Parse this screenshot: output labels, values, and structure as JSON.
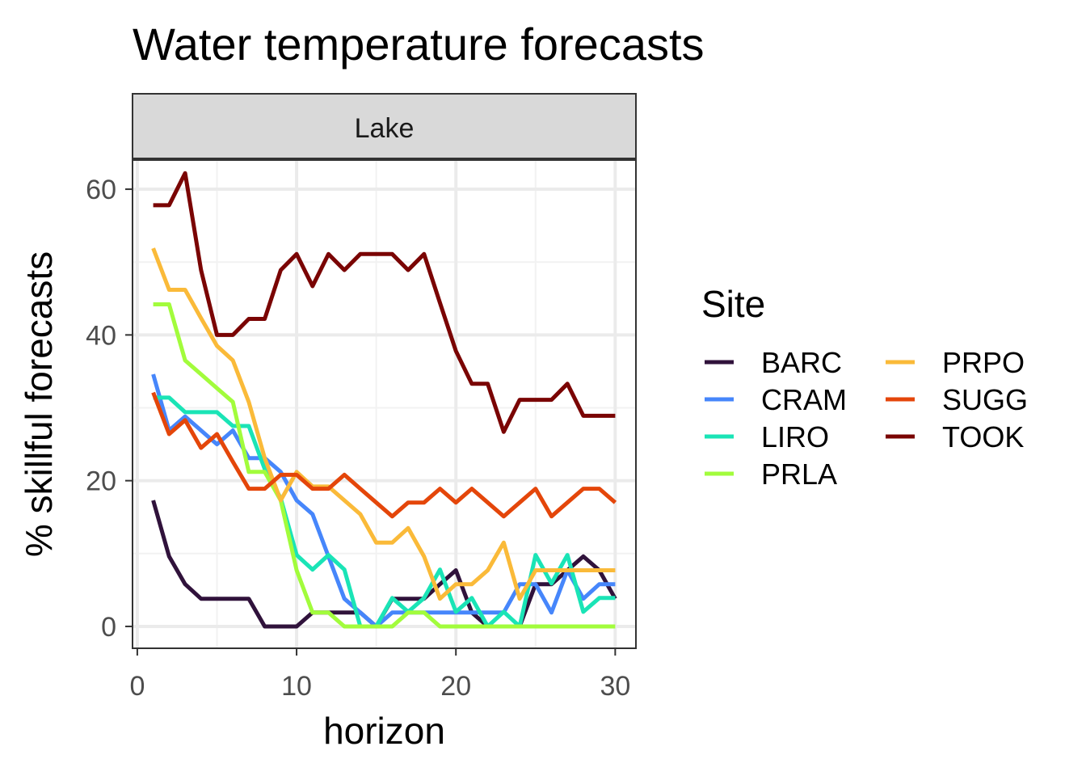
{
  "chart_data": {
    "type": "line",
    "title": "Water temperature forecasts",
    "facet": "Lake",
    "xlabel": "horizon",
    "ylabel": "% skillful forecasts",
    "xlim": [
      -0.3,
      31.3
    ],
    "ylim": [
      -3,
      64
    ],
    "xticks": [
      0,
      10,
      20,
      30
    ],
    "yticks": [
      0,
      20,
      40,
      60
    ],
    "grid": true,
    "legend": {
      "title": "Site",
      "placement": "right",
      "columns": 2
    },
    "x": [
      1,
      2,
      3,
      4,
      5,
      6,
      7,
      8,
      9,
      10,
      11,
      12,
      13,
      14,
      15,
      16,
      17,
      18,
      19,
      20,
      21,
      22,
      23,
      24,
      25,
      26,
      27,
      28,
      29,
      30
    ],
    "series": [
      {
        "name": "BARC",
        "color": "#30123B",
        "values": [
          17.3,
          9.6,
          5.8,
          3.8,
          3.8,
          3.8,
          3.8,
          0,
          0,
          0,
          1.9,
          1.9,
          1.9,
          1.9,
          0,
          3.8,
          3.8,
          3.8,
          5.8,
          7.7,
          1.9,
          0,
          0,
          0,
          5.8,
          5.8,
          7.7,
          9.6,
          7.7,
          3.8
        ]
      },
      {
        "name": "CRAM",
        "color": "#4686FB",
        "values": [
          34.6,
          26.9,
          28.8,
          26.9,
          25,
          26.9,
          23.1,
          23.1,
          21.2,
          17.3,
          15.4,
          9.6,
          3.8,
          1.9,
          0,
          1.9,
          1.9,
          1.9,
          1.9,
          1.9,
          1.9,
          1.9,
          1.9,
          5.8,
          5.8,
          1.9,
          7.7,
          3.8,
          5.8,
          5.8
        ]
      },
      {
        "name": "LIRO",
        "color": "#1AE4B6",
        "values": [
          31.4,
          31.4,
          29.4,
          29.4,
          29.4,
          27.5,
          27.5,
          21.6,
          17.6,
          9.8,
          7.8,
          9.8,
          7.8,
          0,
          0,
          3.9,
          2,
          3.9,
          7.8,
          2,
          3.9,
          0,
          2,
          0,
          9.8,
          5.9,
          9.8,
          2,
          3.9,
          3.9
        ]
      },
      {
        "name": "PRLA",
        "color": "#A2FC3C",
        "values": [
          44.2,
          44.2,
          36.5,
          34.6,
          32.7,
          30.8,
          21.2,
          21.2,
          17.3,
          7.7,
          1.9,
          1.9,
          0,
          0,
          0,
          0,
          1.9,
          1.9,
          0,
          0,
          0,
          0,
          0,
          0,
          0,
          0,
          0,
          0,
          0,
          0
        ]
      },
      {
        "name": "PRPO",
        "color": "#FABA39",
        "values": [
          51.9,
          46.2,
          46.2,
          42.3,
          38.5,
          36.5,
          30.8,
          23.1,
          17.3,
          21.2,
          19.2,
          19.2,
          17.3,
          15.4,
          11.5,
          11.5,
          13.5,
          9.6,
          3.8,
          5.8,
          5.8,
          7.7,
          11.5,
          3.8,
          7.7,
          7.7,
          7.7,
          7.7,
          7.7,
          7.7
        ]
      },
      {
        "name": "SUGG",
        "color": "#E4460A",
        "values": [
          32.1,
          26.4,
          28.3,
          24.5,
          26.4,
          22.6,
          18.9,
          18.9,
          20.8,
          20.8,
          18.9,
          18.9,
          20.8,
          18.9,
          17,
          15.1,
          17,
          17,
          18.9,
          17,
          18.9,
          17,
          15.1,
          17,
          18.9,
          15.1,
          17,
          18.9,
          18.9,
          17
        ]
      },
      {
        "name": "TOOK",
        "color": "#7A0403",
        "values": [
          57.8,
          57.8,
          62.2,
          48.9,
          40,
          40,
          42.2,
          42.2,
          48.9,
          51.1,
          46.7,
          51.1,
          48.9,
          51.1,
          51.1,
          51.1,
          48.9,
          51.1,
          44.4,
          37.8,
          33.3,
          33.3,
          26.7,
          31.1,
          31.1,
          31.1,
          33.3,
          28.9,
          28.9,
          28.9
        ]
      }
    ]
  }
}
